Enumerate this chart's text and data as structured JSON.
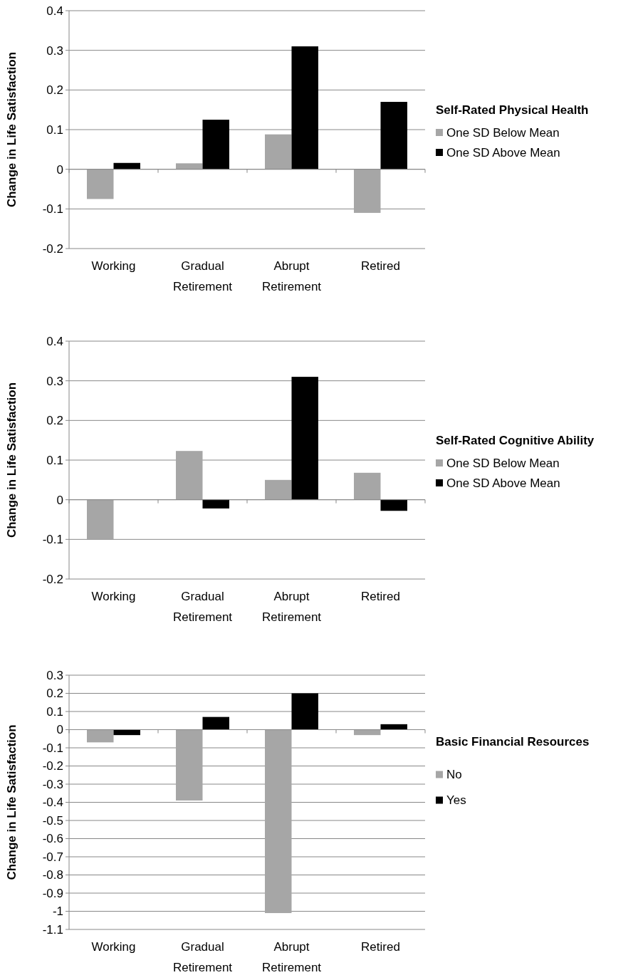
{
  "chart_data": [
    {
      "type": "bar",
      "ylabel": "Change in Life Satisfaction",
      "legend_title": "Self-Rated Physical Health",
      "categories": [
        "Working",
        "Gradual Retirement",
        "Abrupt Retirement",
        "Retired"
      ],
      "series": [
        {
          "name": "One SD Below Mean",
          "color": "#a6a6a6",
          "values": [
            -0.075,
            0.015,
            0.088,
            -0.11
          ]
        },
        {
          "name": "One SD Above Mean",
          "color": "#000000",
          "values": [
            0.016,
            0.125,
            0.31,
            0.17
          ]
        }
      ],
      "ylim": [
        -0.2,
        0.4
      ],
      "yticks": [
        -0.2,
        -0.1,
        0,
        0.1,
        0.2,
        0.3,
        0.4
      ],
      "grid": "y",
      "legend": "right"
    },
    {
      "type": "bar",
      "ylabel": "Change in Life Satisfaction",
      "legend_title": "Self-Rated Cognitive Ability",
      "categories": [
        "Working",
        "Gradual Retirement",
        "Abrupt Retirement",
        "Retired"
      ],
      "series": [
        {
          "name": "One SD Below Mean",
          "color": "#a6a6a6",
          "values": [
            -0.1,
            0.123,
            0.05,
            0.068
          ]
        },
        {
          "name": "One SD Above Mean",
          "color": "#000000",
          "values": [
            0,
            -0.022,
            0.31,
            -0.028
          ]
        }
      ],
      "ylim": [
        -0.2,
        0.4
      ],
      "yticks": [
        -0.2,
        -0.1,
        0,
        0.1,
        0.2,
        0.3,
        0.4
      ],
      "grid": "y",
      "legend": "right"
    },
    {
      "type": "bar",
      "ylabel": "Change in Life Satisfaction",
      "legend_title": "Basic Financial Resources",
      "categories": [
        "Working",
        "Gradual Retirement",
        "Abrupt Retirement",
        "Retired"
      ],
      "series": [
        {
          "name": "No",
          "color": "#a6a6a6",
          "values": [
            -0.07,
            -0.39,
            -1.01,
            -0.03
          ]
        },
        {
          "name": "Yes",
          "color": "#000000",
          "values": [
            -0.03,
            0.07,
            0.2,
            0.03
          ]
        }
      ],
      "ylim": [
        -1.1,
        0.3
      ],
      "yticks": [
        -1.1,
        -1,
        -0.9,
        -0.8,
        -0.7,
        -0.6,
        -0.5,
        -0.4,
        -0.3,
        -0.2,
        -0.1,
        0,
        0.1,
        0.2,
        0.3
      ],
      "grid": "y",
      "legend": "right"
    }
  ]
}
